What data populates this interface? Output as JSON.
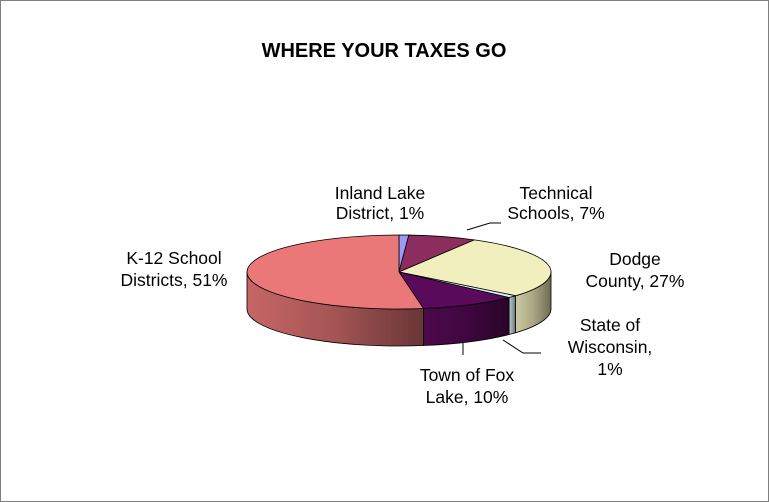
{
  "chart_data": {
    "type": "pie",
    "title": "WHERE YOUR TAXES GO",
    "slices": [
      {
        "label_lines": [
          "Inland Lake",
          "District, 1%"
        ],
        "value": 1,
        "color": "#9b9bf4"
      },
      {
        "label_lines": [
          "Technical",
          "Schools, 7%"
        ],
        "value": 7,
        "color": "#8c2d5f"
      },
      {
        "label_lines": [
          "Dodge",
          "County, 27%"
        ],
        "value": 27,
        "color": "#f1efbd"
      },
      {
        "label_lines": [
          "State of",
          "Wisconsin,",
          "1%"
        ],
        "value": 1,
        "color": "#d7ecf0"
      },
      {
        "label_lines": [
          "Town of Fox",
          "Lake, 10%"
        ],
        "value": 10,
        "color": "#5a0a5a"
      },
      {
        "label_lines": [
          "K-12 School",
          "Districts, 51%"
        ],
        "value": 51,
        "color": "#ea7878"
      }
    ]
  }
}
